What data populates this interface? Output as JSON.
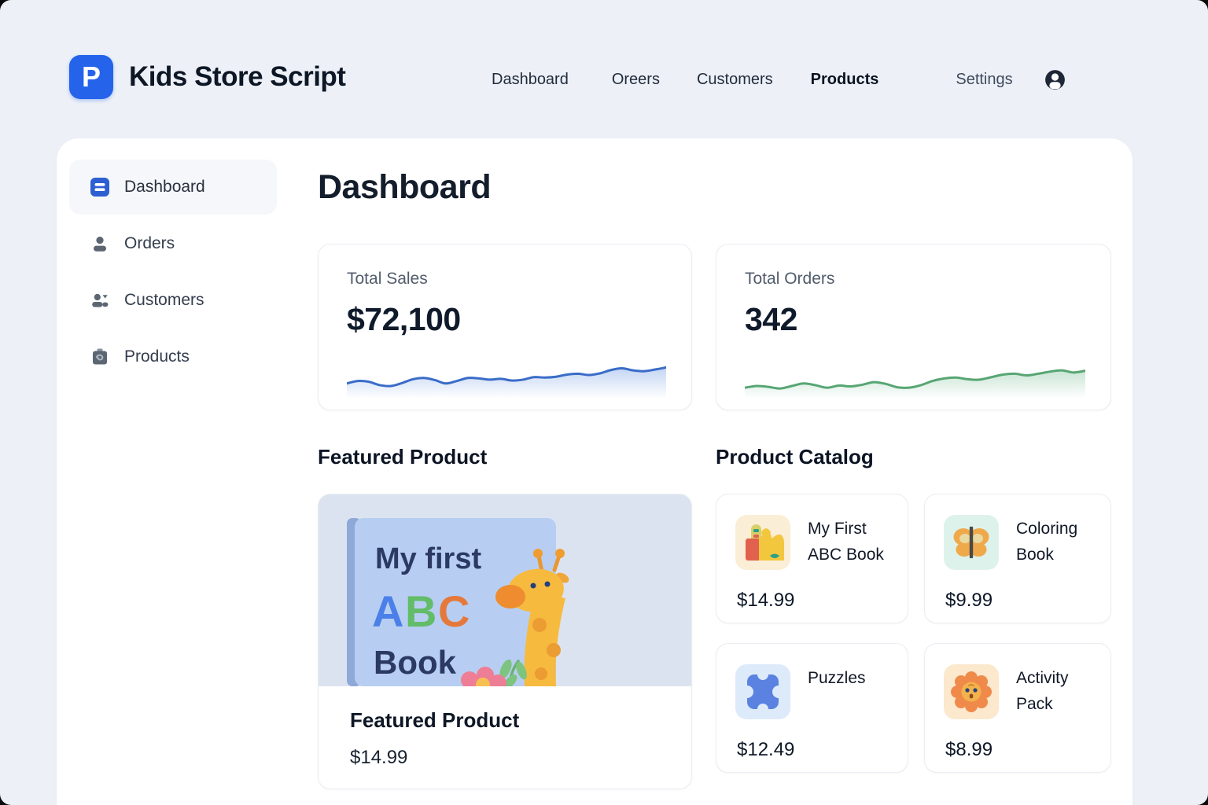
{
  "app": {
    "title": "Kids Store Script",
    "logo_letter": "P"
  },
  "topnav": {
    "items": [
      {
        "label": "Dashboard"
      },
      {
        "label": "Oreers"
      },
      {
        "label": "Customers"
      },
      {
        "label": "Products",
        "active": true
      },
      {
        "label": "Settings"
      }
    ]
  },
  "sidebar": {
    "items": [
      {
        "label": "Dashboard",
        "icon": "dashboard-icon",
        "active": true
      },
      {
        "label": "Orders",
        "icon": "user-icon"
      },
      {
        "label": "Customers",
        "icon": "users-icon"
      },
      {
        "label": "Products",
        "icon": "box-icon"
      }
    ]
  },
  "page": {
    "title": "Dashboard"
  },
  "stats": [
    {
      "label": "Total Sales",
      "value": "$72,100"
    },
    {
      "label": "Total Orders",
      "value": "342"
    }
  ],
  "featured": {
    "heading": "Featured Product",
    "card_title": "Featured Product",
    "price": "$14.99",
    "cover": {
      "line1": "My first",
      "a": "A",
      "b": "B",
      "c": "C",
      "line2": "Book"
    }
  },
  "catalog": {
    "heading": "Product Catalog",
    "items": [
      {
        "title": "My First ABC Book",
        "price": "$14.99",
        "icon": "abc-book-icon"
      },
      {
        "title": "Coloring Book",
        "price": "$9.99",
        "icon": "butterfly-icon"
      },
      {
        "title": "Puzzles",
        "price": "$12.49",
        "icon": "puzzle-icon"
      },
      {
        "title": "Activity Pack",
        "price": "$8.99",
        "icon": "sun-flower-icon"
      }
    ]
  },
  "chart_data": [
    {
      "type": "line",
      "name": "total-sales-sparkline",
      "color": "#3a6cc8",
      "fill": "#bcd0f2",
      "axes": "none",
      "values": [
        30,
        36,
        34,
        26,
        24,
        31,
        40,
        43,
        38,
        30,
        36,
        43,
        42,
        39,
        41,
        37,
        39,
        45,
        44,
        46,
        51,
        53,
        50,
        54,
        62,
        66,
        61,
        59,
        63,
        68
      ]
    },
    {
      "type": "line",
      "name": "total-orders-sparkline",
      "color": "#57a673",
      "fill": "#c3e2cf",
      "axes": "none",
      "values": [
        20,
        24,
        22,
        18,
        24,
        30,
        26,
        20,
        25,
        23,
        27,
        33,
        29,
        21,
        20,
        26,
        36,
        42,
        44,
        40,
        39,
        45,
        51,
        53,
        49,
        53,
        58,
        61,
        56,
        60
      ]
    }
  ]
}
